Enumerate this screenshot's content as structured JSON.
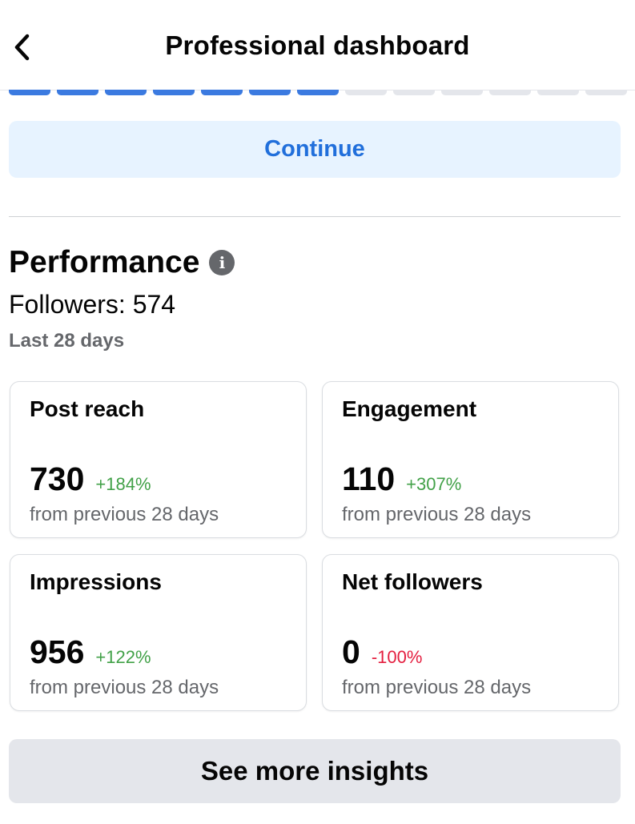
{
  "header": {
    "title": "Professional dashboard",
    "back_icon": "chevron-left-icon"
  },
  "progress": {
    "completed": 7,
    "total": 13
  },
  "continue_label": "Continue",
  "performance": {
    "title": "Performance",
    "info_icon": "i",
    "followers": "Followers: 574",
    "period": "Last 28 days"
  },
  "cards": [
    {
      "label": "Post reach",
      "value": "730",
      "change": "+184%",
      "sub": "from previous 28 days",
      "trend": "positive"
    },
    {
      "label": "Engagement",
      "value": "110",
      "change": "+307%",
      "sub": "from previous 28 days",
      "trend": "positive"
    },
    {
      "label": "Impressions",
      "value": "956",
      "change": "+122%",
      "sub": "from previous 28 days",
      "trend": "positive"
    },
    {
      "label": "Net followers",
      "value": "0",
      "change": "-100%",
      "sub": "from previous 28 days",
      "trend": "negative"
    }
  ],
  "see_more_label": "See more insights",
  "colors": {
    "accent": "#216fdb",
    "positive": "#42a148",
    "negative": "#e41e3f"
  }
}
